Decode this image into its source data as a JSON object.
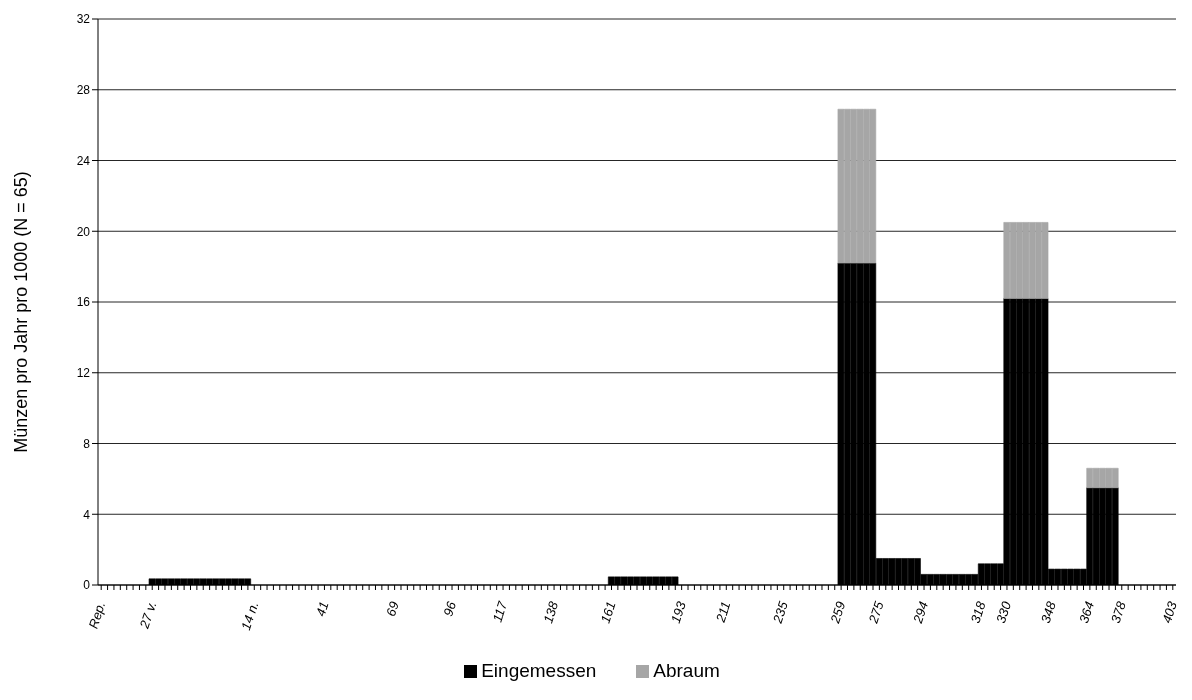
{
  "chart_data": {
    "type": "bar",
    "stacked": true,
    "ylabel": "Münzen pro Jahr pro 1000 (N = 65)",
    "categories": [
      "Rep.",
      null,
      null,
      null,
      null,
      null,
      null,
      null,
      "27 v.",
      null,
      null,
      null,
      null,
      null,
      null,
      null,
      null,
      null,
      null,
      null,
      null,
      null,
      null,
      null,
      "14 n.",
      null,
      null,
      null,
      null,
      null,
      null,
      null,
      null,
      null,
      null,
      "41",
      null,
      null,
      null,
      null,
      null,
      null,
      null,
      null,
      null,
      null,
      "69",
      null,
      null,
      null,
      null,
      null,
      null,
      null,
      null,
      "96",
      null,
      null,
      null,
      null,
      null,
      null,
      null,
      "117",
      null,
      null,
      null,
      null,
      null,
      null,
      null,
      "138",
      null,
      null,
      null,
      null,
      null,
      null,
      null,
      null,
      "161",
      null,
      null,
      null,
      null,
      null,
      null,
      null,
      null,
      null,
      null,
      "193",
      null,
      null,
      null,
      null,
      null,
      null,
      "211",
      null,
      null,
      null,
      null,
      null,
      null,
      null,
      null,
      "235",
      null,
      null,
      null,
      null,
      null,
      null,
      null,
      null,
      "259",
      null,
      null,
      null,
      null,
      null,
      "275",
      null,
      null,
      null,
      null,
      null,
      null,
      "294",
      null,
      null,
      null,
      null,
      null,
      null,
      null,
      null,
      "318",
      null,
      null,
      null,
      "330",
      null,
      null,
      null,
      null,
      null,
      null,
      "348",
      null,
      null,
      null,
      null,
      null,
      "364",
      null,
      null,
      null,
      null,
      "378",
      null,
      null,
      null,
      null,
      null,
      null,
      null,
      "403"
    ],
    "series": [
      {
        "name": "Eingemessen",
        "color": "#000000",
        "values": [
          0,
          0,
          0,
          0,
          0,
          0,
          0,
          0,
          0.35,
          0.35,
          0.35,
          0.35,
          0.35,
          0.35,
          0.35,
          0.35,
          0.35,
          0.35,
          0.35,
          0.35,
          0.35,
          0.35,
          0.35,
          0.35,
          0,
          0,
          0,
          0,
          0,
          0,
          0,
          0,
          0,
          0,
          0,
          0,
          0,
          0,
          0,
          0,
          0,
          0,
          0,
          0,
          0,
          0,
          0,
          0,
          0,
          0,
          0,
          0,
          0,
          0,
          0,
          0,
          0,
          0,
          0,
          0,
          0,
          0,
          0,
          0,
          0,
          0,
          0,
          0,
          0,
          0,
          0,
          0,
          0,
          0,
          0,
          0,
          0,
          0,
          0,
          0,
          0.46,
          0.46,
          0.46,
          0.46,
          0.46,
          0.46,
          0.46,
          0.46,
          0.46,
          0.46,
          0.46,
          0,
          0,
          0,
          0,
          0,
          0,
          0,
          0,
          0,
          0,
          0,
          0,
          0,
          0,
          0,
          0,
          0,
          0,
          0,
          0,
          0,
          0,
          0,
          0,
          0,
          18.2,
          18.2,
          18.2,
          18.2,
          18.2,
          18.2,
          1.5,
          1.5,
          1.5,
          1.5,
          1.5,
          1.5,
          1.5,
          0.6,
          0.6,
          0.6,
          0.6,
          0.6,
          0.6,
          0.6,
          0.6,
          0.6,
          1.2,
          1.2,
          1.2,
          1.2,
          16.2,
          16.2,
          16.2,
          16.2,
          16.2,
          16.2,
          16.2,
          0.9,
          0.9,
          0.9,
          0.9,
          0.9,
          0.9,
          5.5,
          5.5,
          5.5,
          5.5,
          5.5,
          0,
          0,
          0,
          0,
          0,
          0,
          0,
          0,
          0
        ]
      },
      {
        "name": "Abraum",
        "color": "#a6a6a6",
        "values": [
          null,
          null,
          null,
          null,
          null,
          null,
          null,
          null,
          null,
          null,
          null,
          null,
          null,
          null,
          null,
          null,
          null,
          null,
          null,
          null,
          null,
          null,
          null,
          null,
          null,
          null,
          null,
          null,
          null,
          null,
          null,
          null,
          null,
          null,
          null,
          null,
          null,
          null,
          null,
          null,
          null,
          null,
          null,
          null,
          null,
          null,
          null,
          null,
          null,
          null,
          null,
          null,
          null,
          null,
          null,
          null,
          null,
          null,
          null,
          null,
          null,
          null,
          null,
          null,
          null,
          null,
          null,
          null,
          null,
          null,
          null,
          null,
          null,
          null,
          null,
          null,
          null,
          null,
          null,
          null,
          null,
          null,
          null,
          null,
          null,
          null,
          null,
          null,
          null,
          null,
          null,
          null,
          null,
          null,
          null,
          null,
          null,
          null,
          null,
          null,
          null,
          null,
          null,
          null,
          null,
          null,
          null,
          null,
          null,
          null,
          null,
          null,
          null,
          null,
          null,
          null,
          8.7,
          8.7,
          8.7,
          8.7,
          8.7,
          8.7,
          null,
          null,
          null,
          null,
          null,
          null,
          null,
          null,
          null,
          null,
          null,
          null,
          null,
          null,
          null,
          null,
          null,
          null,
          null,
          null,
          4.3,
          4.3,
          4.3,
          4.3,
          4.3,
          4.3,
          4.3,
          null,
          null,
          null,
          null,
          null,
          null,
          1.1,
          1.1,
          1.1,
          1.1,
          1.1,
          null,
          null,
          null,
          null,
          null,
          null,
          null,
          null,
          null
        ]
      }
    ],
    "ylim": [
      0,
      32
    ],
    "yticks": [
      0,
      4,
      8,
      12,
      16,
      20,
      24,
      28,
      32
    ],
    "grid": "y",
    "legend": "bottom"
  }
}
